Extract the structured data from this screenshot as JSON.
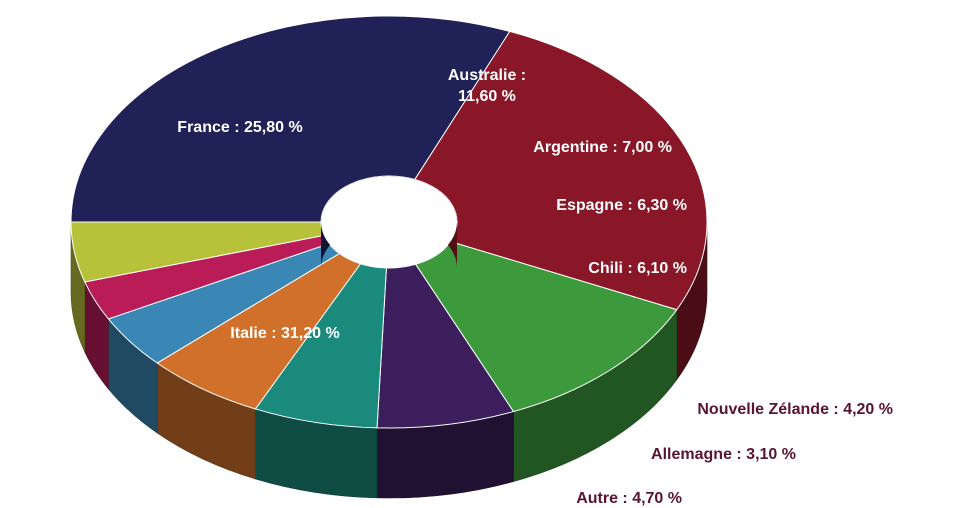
{
  "chart_data": {
    "type": "pie",
    "title": "",
    "slices": [
      {
        "label": "Italie : 31,20 %",
        "value": 31.2,
        "color": "#1f2157"
      },
      {
        "label": "France : 25,80 %",
        "value": 25.8,
        "color": "#891727"
      },
      {
        "label": "Australie : 11,60 %",
        "value": 11.6,
        "color": "#3c9a3d"
      },
      {
        "label": "Argentine : 7,00 %",
        "value": 7.0,
        "color": "#3b1e5b"
      },
      {
        "label": "Espagne : 6,30 %",
        "value": 6.3,
        "color": "#1a8a7c"
      },
      {
        "label": "Chili : 6,10 %",
        "value": 6.1,
        "color": "#d0702b"
      },
      {
        "label": "Nouvelle Zélande : 4,20 %",
        "value": 4.2,
        "color": "#3a87b5"
      },
      {
        "label": "Allemagne : 3,10 %",
        "value": 3.1,
        "color": "#b91c57"
      },
      {
        "label": "Autre : 4,70 %",
        "value": 4.7,
        "color": "#b7c13a"
      }
    ],
    "outside_label_color": "#5a1430"
  }
}
